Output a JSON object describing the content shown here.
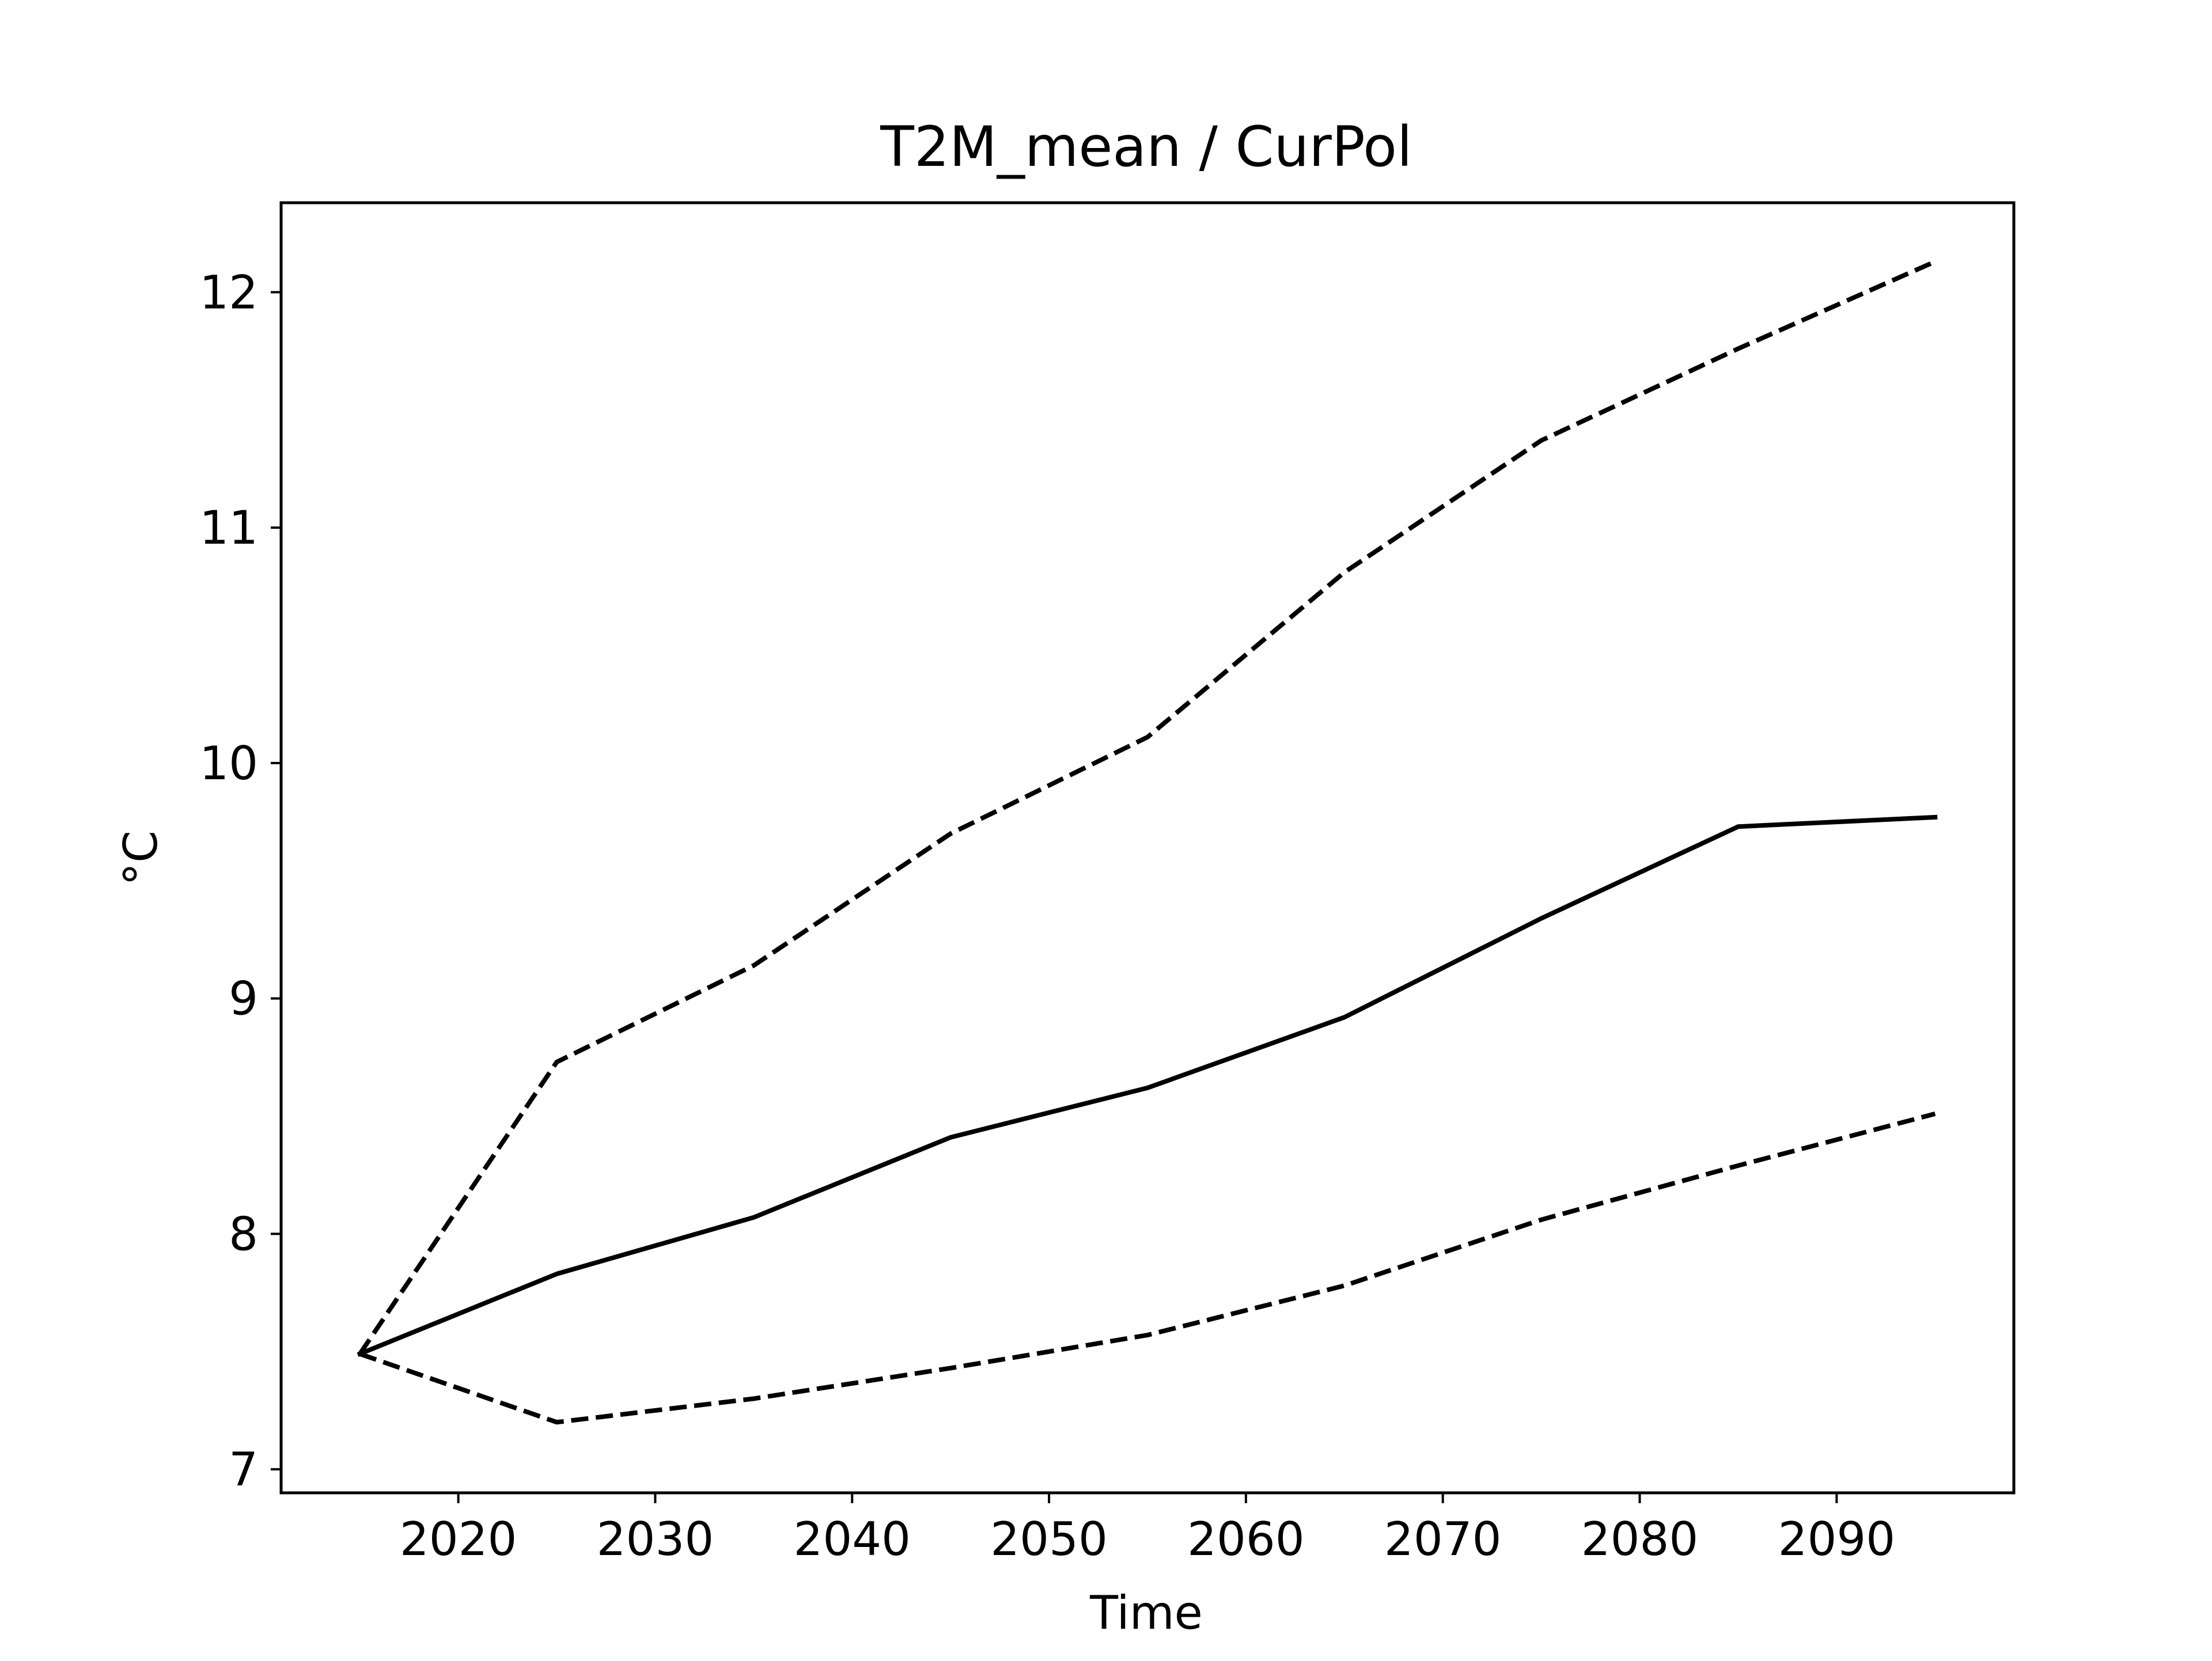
{
  "chart_data": {
    "type": "line",
    "title": "T2M_mean / CurPol",
    "xlabel": "Time",
    "ylabel": "°C",
    "xlim": [
      2011,
      2099
    ],
    "ylim": [
      6.9,
      12.38
    ],
    "xticks": [
      2020,
      2030,
      2040,
      2050,
      2060,
      2070,
      2080,
      2090
    ],
    "yticks": [
      7,
      8,
      9,
      10,
      11,
      12
    ],
    "grid": false,
    "legend": false,
    "series": [
      {
        "style": "solid",
        "color": "#000000",
        "x": [
          2015,
          2025,
          2035,
          2045,
          2055,
          2065,
          2075,
          2085,
          2095
        ],
        "y": [
          7.49,
          7.83,
          8.07,
          8.41,
          8.62,
          8.92,
          9.34,
          9.73,
          9.77
        ]
      },
      {
        "style": "dashed",
        "color": "#000000",
        "x": [
          2015,
          2025,
          2035,
          2045,
          2055,
          2065,
          2075,
          2085,
          2095
        ],
        "y": [
          7.49,
          8.73,
          9.14,
          9.7,
          10.11,
          10.81,
          11.37,
          11.76,
          12.13
        ]
      },
      {
        "style": "dashed",
        "color": "#000000",
        "x": [
          2015,
          2025,
          2035,
          2045,
          2055,
          2065,
          2075,
          2085,
          2095
        ],
        "y": [
          7.49,
          7.2,
          7.3,
          7.43,
          7.57,
          7.78,
          8.06,
          8.29,
          8.51
        ]
      }
    ]
  }
}
